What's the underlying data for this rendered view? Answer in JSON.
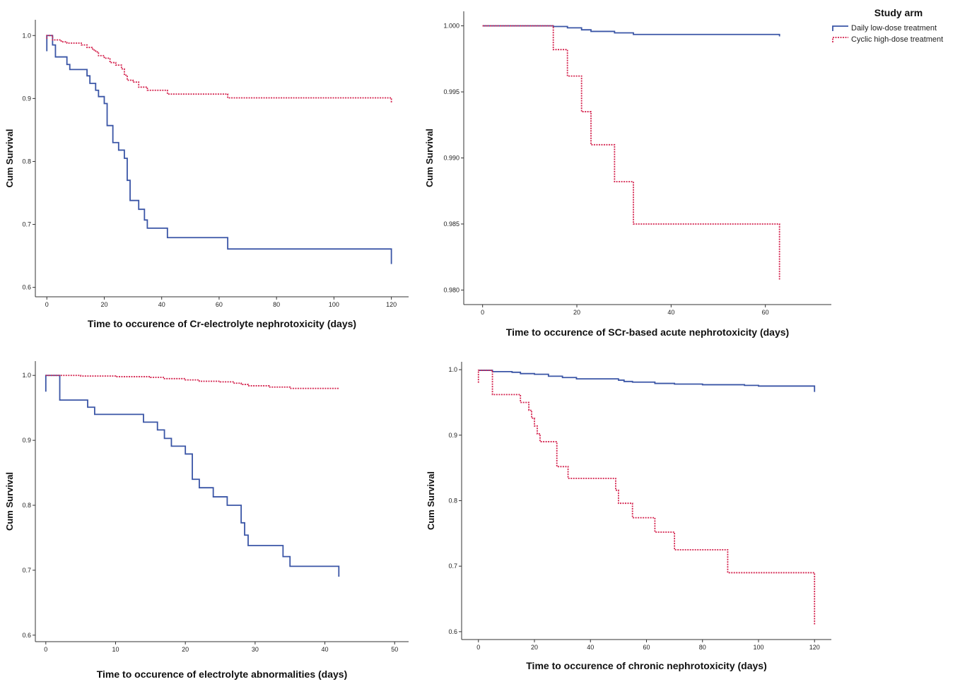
{
  "legend": {
    "title": "Study arm",
    "items": [
      {
        "label": "Daily low-dose treatment",
        "color": "#3a55a6",
        "style": "solid"
      },
      {
        "label": "Cyclic high-dose treatment",
        "color": "#d4234e",
        "style": "dotted"
      }
    ]
  },
  "chart_data": [
    {
      "type": "line",
      "title": "",
      "xlabel": "Time to occurence of Cr-electrolyte nephrotoxicity (days)",
      "ylabel": "Cum Survival",
      "xlim": [
        -4,
        126
      ],
      "ylim": [
        0.585,
        1.025
      ],
      "xticks": [
        0,
        20,
        40,
        60,
        80,
        100,
        120
      ],
      "yticks": [
        0.6,
        0.7,
        0.8,
        0.9,
        1.0
      ],
      "ytick_labels": [
        "0.6",
        "0.7",
        "0.8",
        "0.9",
        "1.0"
      ],
      "xtick_labels": [
        "0",
        "20",
        "40",
        "60",
        "80",
        "100",
        "120"
      ],
      "series": [
        {
          "name": "Daily low-dose treatment",
          "steps": [
            [
              0,
              0.975
            ],
            [
              0,
              1.0
            ],
            [
              2,
              0.985
            ],
            [
              3,
              0.966
            ],
            [
              7,
              0.956
            ],
            [
              7,
              0.954
            ],
            [
              8,
              0.946
            ],
            [
              14,
              0.936
            ],
            [
              15,
              0.924
            ],
            [
              17,
              0.913
            ],
            [
              18,
              0.903
            ],
            [
              20,
              0.892
            ],
            [
              21,
              0.857
            ],
            [
              23,
              0.83
            ],
            [
              25,
              0.818
            ],
            [
              27,
              0.805
            ],
            [
              28,
              0.77
            ],
            [
              29,
              0.749
            ],
            [
              29,
              0.738
            ],
            [
              32,
              0.724
            ],
            [
              34,
              0.707
            ],
            [
              35,
              0.694
            ],
            [
              42,
              0.679
            ],
            [
              63,
              0.661
            ],
            [
              120,
              0.637
            ]
          ]
        },
        {
          "name": "Cyclic high-dose treatment",
          "steps": [
            [
              0,
              0.995
            ],
            [
              0,
              1.0
            ],
            [
              2,
              0.993
            ],
            [
              5,
              0.99
            ],
            [
              7,
              0.988
            ],
            [
              12,
              0.985
            ],
            [
              14,
              0.981
            ],
            [
              16,
              0.977
            ],
            [
              17,
              0.974
            ],
            [
              18,
              0.968
            ],
            [
              20,
              0.964
            ],
            [
              22,
              0.957
            ],
            [
              24,
              0.953
            ],
            [
              26,
              0.947
            ],
            [
              27,
              0.937
            ],
            [
              28,
              0.929
            ],
            [
              30,
              0.926
            ],
            [
              32,
              0.918
            ],
            [
              35,
              0.913
            ],
            [
              42,
              0.907
            ],
            [
              63,
              0.901
            ],
            [
              120,
              0.893
            ]
          ]
        }
      ]
    },
    {
      "type": "line",
      "title": "",
      "xlabel": "Time to occurence of SCr-based acute nephrotoxicity (days)",
      "ylabel": "Cum Survival",
      "xlim": [
        -4,
        74
      ],
      "ylim": [
        0.9789,
        1.0011
      ],
      "xticks": [
        0,
        20,
        40,
        60
      ],
      "yticks": [
        0.98,
        0.985,
        0.99,
        0.995,
        1.0
      ],
      "ytick_labels": [
        "0.980",
        "0.985",
        "0.990",
        "0.995",
        "1.000"
      ],
      "xtick_labels": [
        "0",
        "20",
        "40",
        "60"
      ],
      "series": [
        {
          "name": "Daily low-dose treatment",
          "steps": [
            [
              0,
              1.0
            ],
            [
              15,
              0.99995
            ],
            [
              18,
              0.99985
            ],
            [
              21,
              0.9997
            ],
            [
              23,
              0.99958
            ],
            [
              28,
              0.99947
            ],
            [
              32,
              0.99935
            ],
            [
              63,
              0.9992
            ]
          ]
        },
        {
          "name": "Cyclic high-dose treatment",
          "steps": [
            [
              0,
              1.0
            ],
            [
              15,
              0.9982
            ],
            [
              18,
              0.9962
            ],
            [
              21,
              0.9935
            ],
            [
              23,
              0.991
            ],
            [
              28,
              0.9882
            ],
            [
              32,
              0.985
            ],
            [
              63,
              0.9808
            ]
          ]
        }
      ]
    },
    {
      "type": "line",
      "title": "",
      "xlabel": "Time to occurence of electrolyte abnormalities (days)",
      "ylabel": "Cum Survival",
      "xlim": [
        -1.5,
        52
      ],
      "ylim": [
        0.59,
        1.022
      ],
      "xticks": [
        0,
        10,
        20,
        30,
        40,
        50
      ],
      "yticks": [
        0.6,
        0.7,
        0.8,
        0.9,
        1.0
      ],
      "ytick_labels": [
        "0.6",
        "0.7",
        "0.8",
        "0.9",
        "1.0"
      ],
      "xtick_labels": [
        "0",
        "10",
        "20",
        "30",
        "40",
        "50"
      ],
      "series": [
        {
          "name": "Daily low-dose treatment",
          "steps": [
            [
              0,
              0.975
            ],
            [
              0,
              1.0
            ],
            [
              2,
              0.962
            ],
            [
              6,
              0.951
            ],
            [
              7,
              0.94
            ],
            [
              14,
              0.928
            ],
            [
              16,
              0.916
            ],
            [
              17,
              0.903
            ],
            [
              18,
              0.891
            ],
            [
              20,
              0.879
            ],
            [
              21,
              0.84
            ],
            [
              22,
              0.827
            ],
            [
              24,
              0.813
            ],
            [
              26,
              0.8
            ],
            [
              28,
              0.773
            ],
            [
              28.5,
              0.754
            ],
            [
              29,
              0.738
            ],
            [
              34,
              0.721
            ],
            [
              35,
              0.706
            ],
            [
              42,
              0.69
            ]
          ]
        },
        {
          "name": "Cyclic high-dose treatment",
          "steps": [
            [
              0,
              1.0
            ],
            [
              5,
              0.999
            ],
            [
              10,
              0.998
            ],
            [
              15,
              0.997
            ],
            [
              17,
              0.995
            ],
            [
              20,
              0.993
            ],
            [
              22,
              0.991
            ],
            [
              25,
              0.99
            ],
            [
              27,
              0.988
            ],
            [
              28,
              0.986
            ],
            [
              29,
              0.984
            ],
            [
              32,
              0.982
            ],
            [
              35,
              0.98
            ],
            [
              42,
              0.98
            ]
          ]
        }
      ]
    },
    {
      "type": "line",
      "title": "",
      "xlabel": "Time to occurence of chronic nephrotoxicity (days)",
      "ylabel": "Cum Survival",
      "xlim": [
        -6,
        126
      ],
      "ylim": [
        0.588,
        1.012
      ],
      "xticks": [
        0,
        20,
        40,
        60,
        80,
        100,
        120
      ],
      "yticks": [
        0.6,
        0.7,
        0.8,
        0.9,
        1.0
      ],
      "ytick_labels": [
        "0.6",
        "0.7",
        "0.8",
        "0.9",
        "1.0"
      ],
      "xtick_labels": [
        "0",
        "20",
        "40",
        "60",
        "80",
        "100",
        "120"
      ],
      "series": [
        {
          "name": "Daily low-dose treatment",
          "steps": [
            [
              0,
              0.999
            ],
            [
              5,
              0.997
            ],
            [
              12,
              0.996
            ],
            [
              15,
              0.994
            ],
            [
              20,
              0.993
            ],
            [
              25,
              0.99
            ],
            [
              30,
              0.988
            ],
            [
              35,
              0.986
            ],
            [
              50,
              0.985
            ],
            [
              50,
              0.984
            ],
            [
              52,
              0.982
            ],
            [
              55,
              0.981
            ],
            [
              63,
              0.979
            ],
            [
              70,
              0.978
            ],
            [
              80,
              0.977
            ],
            [
              95,
              0.976
            ],
            [
              100,
              0.975
            ],
            [
              120,
              0.974
            ],
            [
              120,
              0.966
            ]
          ]
        },
        {
          "name": "Cyclic high-dose treatment",
          "steps": [
            [
              0,
              0.98
            ],
            [
              0,
              0.999
            ],
            [
              5,
              0.962
            ],
            [
              15,
              0.95
            ],
            [
              18,
              0.938
            ],
            [
              19,
              0.926
            ],
            [
              20,
              0.914
            ],
            [
              21,
              0.902
            ],
            [
              22,
              0.89
            ],
            [
              28,
              0.852
            ],
            [
              32,
              0.834
            ],
            [
              49,
              0.816
            ],
            [
              50,
              0.796
            ],
            [
              55,
              0.774
            ],
            [
              63,
              0.752
            ],
            [
              70,
              0.725
            ],
            [
              89,
              0.69
            ],
            [
              120,
              0.61
            ]
          ]
        }
      ]
    }
  ]
}
